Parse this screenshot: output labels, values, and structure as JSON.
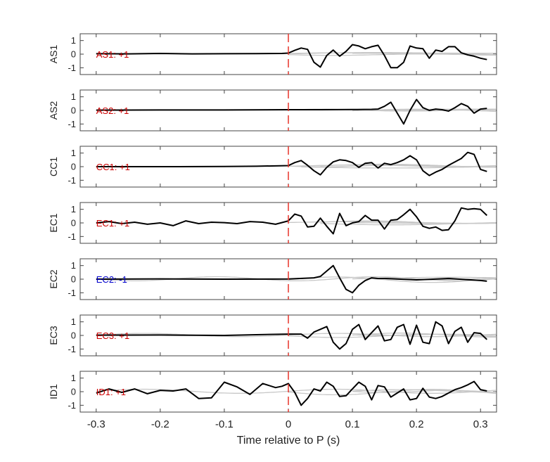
{
  "chart_data": {
    "type": "line",
    "xlabel": "Time relative to P (s)",
    "xlim": [
      -0.325,
      0.325
    ],
    "xticks": [
      -0.3,
      -0.2,
      -0.1,
      0,
      0.1,
      0.2,
      0.3
    ],
    "xtick_labels": [
      "-0.3",
      "-0.2",
      "-0.1",
      "0",
      "0.1",
      "0.2",
      "0.3"
    ],
    "ylim": [
      -1.5,
      1.5
    ],
    "yticks": [
      -1,
      0,
      1
    ],
    "ytick_labels": [
      "-1",
      "0",
      "1"
    ],
    "marker_x": 0,
    "colors": {
      "highlight": "#000000",
      "reference": "#c8c8c8",
      "marker": "#e8332a",
      "positive": "#cc0000",
      "negative": "#0000cc",
      "axis": "#444444"
    },
    "panels": [
      {
        "name": "AS1",
        "label": "AS1: +1",
        "polarity": 1,
        "x": [
          -0.3,
          -0.25,
          -0.2,
          -0.15,
          -0.1,
          -0.05,
          -0.01,
          0,
          0.01,
          0.02,
          0.03,
          0.04,
          0.05,
          0.06,
          0.07,
          0.08,
          0.09,
          0.1,
          0.11,
          0.12,
          0.13,
          0.14,
          0.15,
          0.16,
          0.17,
          0.18,
          0.19,
          0.2,
          0.21,
          0.22,
          0.23,
          0.24,
          0.25,
          0.26,
          0.27,
          0.28,
          0.29,
          0.3,
          0.31
        ],
        "y": [
          0.03,
          0.02,
          0.05,
          0.02,
          0.03,
          0.04,
          0.05,
          0.08,
          0.28,
          0.45,
          0.35,
          -0.6,
          -0.95,
          -0.1,
          0.3,
          -0.15,
          0.2,
          0.7,
          0.6,
          0.4,
          0.55,
          0.65,
          -0.1,
          -1.0,
          -1.0,
          -0.6,
          0.6,
          0.45,
          0.4,
          -0.3,
          0.3,
          0.2,
          0.55,
          0.55,
          0.1,
          -0.05,
          -0.15,
          -0.3,
          -0.4
        ],
        "refs": [
          [
            0,
            0.05,
            0.3,
            0.05
          ],
          [
            0,
            -0.05,
            0.28,
            -0.04
          ],
          [
            0,
            0.1,
            0.55,
            0.02
          ],
          [
            0.1,
            0.02,
            0.45,
            0.06
          ]
        ]
      },
      {
        "name": "AS2",
        "label": "AS2: +1",
        "polarity": 1,
        "x": [
          -0.3,
          -0.2,
          -0.1,
          0,
          0.05,
          0.1,
          0.13,
          0.14,
          0.15,
          0.16,
          0.17,
          0.18,
          0.19,
          0.2,
          0.21,
          0.22,
          0.23,
          0.24,
          0.25,
          0.26,
          0.27,
          0.28,
          0.29,
          0.3,
          0.31
        ],
        "y": [
          0.02,
          0.03,
          0.03,
          0.05,
          0.05,
          0.06,
          0.08,
          0.1,
          0.3,
          0.6,
          -0.2,
          -1.0,
          0.0,
          0.8,
          0.2,
          0.0,
          0.1,
          0.05,
          -0.05,
          0.2,
          0.5,
          0.3,
          -0.2,
          0.1,
          0.15
        ],
        "refs": [
          [
            0,
            0.05,
            0.2,
            0.04
          ],
          [
            0.1,
            -0.08,
            0.35,
            0.03
          ],
          [
            0.1,
            0.12,
            0.4,
            -0.03
          ],
          [
            0.15,
            -0.05,
            0.2,
            0.05
          ]
        ]
      },
      {
        "name": "CC1",
        "label": "CC1: +1",
        "polarity": 1,
        "x": [
          -0.3,
          -0.2,
          -0.1,
          -0.05,
          0,
          0.01,
          0.02,
          0.03,
          0.04,
          0.05,
          0.06,
          0.07,
          0.08,
          0.09,
          0.1,
          0.11,
          0.12,
          0.13,
          0.14,
          0.15,
          0.16,
          0.17,
          0.18,
          0.19,
          0.2,
          0.21,
          0.22,
          0.23,
          0.24,
          0.25,
          0.26,
          0.27,
          0.28,
          0.29,
          0.3,
          0.31
        ],
        "y": [
          0.0,
          0.0,
          0.01,
          0.03,
          0.08,
          0.3,
          0.45,
          0.1,
          -0.3,
          -0.6,
          -0.05,
          0.35,
          0.5,
          0.45,
          0.3,
          -0.05,
          0.25,
          0.3,
          -0.1,
          0.25,
          0.15,
          0.3,
          0.5,
          0.8,
          0.5,
          -0.3,
          -0.65,
          -0.4,
          -0.2,
          0.1,
          0.35,
          0.6,
          1.05,
          0.9,
          -0.2,
          -0.35
        ],
        "refs": [
          [
            0,
            0.1,
            0.5,
            0.03
          ],
          [
            0.02,
            -0.08,
            0.55,
            -0.02
          ],
          [
            0.05,
            0.12,
            0.4,
            0.06
          ],
          [
            0,
            -0.05,
            0.2,
            0.04
          ]
        ]
      },
      {
        "name": "EC1",
        "label": "EC1: +1",
        "polarity": 1,
        "x": [
          -0.3,
          -0.28,
          -0.26,
          -0.24,
          -0.22,
          -0.2,
          -0.18,
          -0.16,
          -0.14,
          -0.12,
          -0.1,
          -0.08,
          -0.06,
          -0.04,
          -0.02,
          0,
          0.01,
          0.02,
          0.03,
          0.04,
          0.05,
          0.06,
          0.07,
          0.08,
          0.09,
          0.1,
          0.11,
          0.12,
          0.13,
          0.14,
          0.15,
          0.16,
          0.17,
          0.18,
          0.19,
          0.2,
          0.21,
          0.22,
          0.23,
          0.24,
          0.25,
          0.26,
          0.27,
          0.28,
          0.29,
          0.3,
          0.31
        ],
        "y": [
          0.0,
          0.1,
          -0.05,
          0.05,
          -0.1,
          0.0,
          -0.2,
          0.15,
          -0.05,
          0.05,
          0.02,
          -0.05,
          0.1,
          0.05,
          -0.1,
          0.15,
          0.65,
          0.5,
          -0.3,
          -0.25,
          0.35,
          -0.25,
          -0.8,
          0.7,
          -0.2,
          0.0,
          0.1,
          0.55,
          0.2,
          0.2,
          -0.45,
          0.2,
          0.25,
          0.6,
          1.0,
          0.45,
          -0.25,
          -0.4,
          -0.3,
          -0.55,
          -0.5,
          0.15,
          1.1,
          1.0,
          1.05,
          1.0,
          0.55
        ],
        "refs": [
          [
            0,
            0.06,
            0.4,
            0.03
          ],
          [
            0.05,
            -0.1,
            0.45,
            -0.04
          ],
          [
            0.05,
            0.1,
            0.3,
            0.05
          ],
          [
            0.1,
            -0.06,
            0.6,
            0.02
          ]
        ]
      },
      {
        "name": "EC2",
        "label": "EC2: -1",
        "polarity": -1,
        "x": [
          -0.3,
          -0.2,
          -0.1,
          0,
          0.04,
          0.05,
          0.06,
          0.07,
          0.08,
          0.09,
          0.1,
          0.11,
          0.12,
          0.13,
          0.14,
          0.15,
          0.2,
          0.25,
          0.3,
          0.31
        ],
        "y": [
          0.0,
          0.02,
          0.0,
          0.01,
          0.1,
          0.2,
          0.6,
          1.0,
          0.1,
          -0.75,
          -1.0,
          -0.45,
          -0.1,
          0.1,
          0.05,
          0.05,
          -0.05,
          0.05,
          -0.1,
          -0.15
        ],
        "refs": [
          [
            -0.3,
            -0.15,
            0.25,
            0.03
          ],
          [
            0.0,
            0.2,
            0.3,
            -0.04
          ],
          [
            0.1,
            0.12,
            0.6,
            0.02
          ],
          [
            0.15,
            -0.1,
            0.3,
            0.05
          ]
        ]
      },
      {
        "name": "EC3",
        "label": "EC3: +1",
        "polarity": 1,
        "x": [
          -0.3,
          -0.2,
          -0.1,
          -0.05,
          0,
          0.02,
          0.03,
          0.04,
          0.05,
          0.06,
          0.07,
          0.08,
          0.09,
          0.1,
          0.11,
          0.12,
          0.13,
          0.14,
          0.15,
          0.16,
          0.17,
          0.18,
          0.19,
          0.2,
          0.21,
          0.22,
          0.23,
          0.24,
          0.25,
          0.26,
          0.27,
          0.28,
          0.29,
          0.3,
          0.31
        ],
        "y": [
          0.02,
          0.03,
          0.0,
          0.05,
          0.1,
          0.1,
          -0.2,
          0.25,
          0.45,
          0.65,
          -0.5,
          -1.0,
          -0.6,
          0.45,
          0.8,
          -0.3,
          0.2,
          0.7,
          -0.4,
          -0.3,
          0.6,
          0.8,
          -0.65,
          0.75,
          -0.5,
          -0.6,
          1.0,
          0.7,
          -0.6,
          0.3,
          0.6,
          -0.5,
          0.2,
          0.15,
          -0.3
        ],
        "refs": [
          [
            -0.3,
            0.12,
            0.3,
            0.03
          ],
          [
            0.0,
            -0.12,
            0.3,
            -0.03
          ],
          [
            0.1,
            0.15,
            0.3,
            0.02
          ],
          [
            0.1,
            -0.05,
            0.2,
            0.04
          ]
        ]
      },
      {
        "name": "ID1",
        "label": "ID1: +1",
        "polarity": 1,
        "x": [
          -0.3,
          -0.28,
          -0.26,
          -0.24,
          -0.22,
          -0.2,
          -0.18,
          -0.16,
          -0.14,
          -0.12,
          -0.1,
          -0.08,
          -0.06,
          -0.04,
          -0.02,
          -0.01,
          0,
          0.01,
          0.02,
          0.03,
          0.04,
          0.05,
          0.06,
          0.07,
          0.08,
          0.09,
          0.1,
          0.11,
          0.12,
          0.13,
          0.14,
          0.15,
          0.16,
          0.17,
          0.18,
          0.19,
          0.2,
          0.21,
          0.22,
          0.23,
          0.24,
          0.25,
          0.26,
          0.27,
          0.28,
          0.29,
          0.3,
          0.31
        ],
        "y": [
          -0.1,
          0.2,
          -0.05,
          0.2,
          -0.15,
          0.1,
          0.05,
          0.2,
          -0.5,
          -0.45,
          0.7,
          0.35,
          -0.2,
          0.6,
          0.3,
          0.4,
          0.6,
          -0.05,
          -1.0,
          -0.5,
          0.2,
          0.05,
          0.7,
          0.4,
          -0.35,
          -0.3,
          0.2,
          0.7,
          0.4,
          -0.6,
          0.45,
          0.35,
          -0.4,
          -0.1,
          0.2,
          -0.6,
          -0.5,
          0.25,
          -0.4,
          -0.5,
          -0.35,
          -0.1,
          0.15,
          0.3,
          0.5,
          0.75,
          0.15,
          0.05
        ],
        "refs": [
          [
            -0.3,
            0.15,
            0.3,
            0.03
          ],
          [
            0.0,
            -0.2,
            0.3,
            -0.03
          ],
          [
            0.1,
            0.1,
            0.3,
            0.05
          ],
          [
            0.1,
            -0.08,
            0.2,
            0.02
          ]
        ]
      }
    ]
  }
}
